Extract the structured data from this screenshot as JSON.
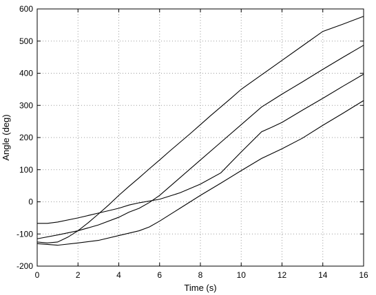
{
  "chart_data": {
    "type": "line",
    "title": "",
    "xlabel": "Time (s)",
    "ylabel": "Angle (deg)",
    "xlim": [
      0,
      16
    ],
    "ylim": [
      -200,
      600
    ],
    "xticks": [
      0,
      2,
      4,
      6,
      8,
      10,
      12,
      14,
      16
    ],
    "yticks": [
      -200,
      -100,
      0,
      100,
      200,
      300,
      400,
      500,
      600
    ],
    "grid": true,
    "legend": "none",
    "line_color": "#000000",
    "series": [
      {
        "x": [
          0,
          0.5,
          1,
          1.5,
          2,
          2.5,
          3,
          3.5,
          4,
          4.5,
          5,
          5.5,
          6,
          6.5,
          7,
          7.5,
          8,
          8.5,
          9,
          9.5,
          10,
          11,
          12,
          13,
          14,
          15,
          16
        ],
        "y": [
          -125,
          -128,
          -125,
          -110,
          -90,
          -65,
          -38,
          -10,
          20,
          48,
          75,
          103,
          130,
          158,
          185,
          212,
          240,
          268,
          295,
          322,
          350,
          395,
          440,
          485,
          530,
          553,
          577
        ]
      },
      {
        "x": [
          0,
          1,
          2,
          3,
          4,
          4.5,
          5,
          5.5,
          6,
          7,
          8,
          9,
          10,
          11,
          11.5,
          12,
          13,
          14,
          15,
          16
        ],
        "y": [
          -115,
          -103,
          -90,
          -72,
          -48,
          -32,
          -20,
          -2,
          20,
          75,
          130,
          185,
          240,
          295,
          315,
          335,
          373,
          412,
          450,
          487
        ]
      },
      {
        "x": [
          0,
          0.5,
          1,
          2,
          3,
          4,
          4.5,
          5,
          6,
          7,
          8,
          9,
          10,
          11,
          11.5,
          12,
          13,
          14,
          15,
          16
        ],
        "y": [
          -67,
          -67,
          -63,
          -50,
          -35,
          -20,
          -10,
          -3,
          8,
          28,
          55,
          90,
          155,
          218,
          232,
          247,
          285,
          322,
          360,
          397
        ]
      },
      {
        "x": [
          0,
          1,
          2,
          3,
          4,
          5,
          5.5,
          6,
          7,
          8,
          9,
          10,
          11,
          12,
          13,
          14,
          15,
          16
        ],
        "y": [
          -130,
          -135,
          -128,
          -120,
          -105,
          -90,
          -78,
          -60,
          -20,
          20,
          58,
          97,
          135,
          165,
          198,
          238,
          276,
          315
        ]
      }
    ]
  }
}
